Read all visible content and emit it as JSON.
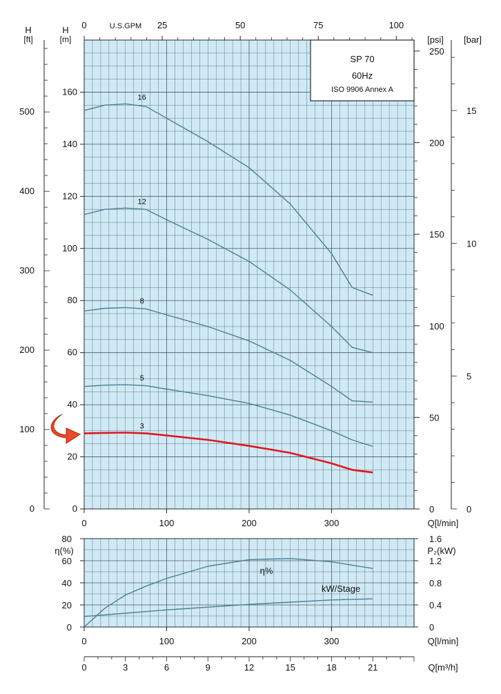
{
  "chart_data": [
    {
      "type": "line",
      "name_box": {
        "title": "SP 70",
        "frequency": "60Hz",
        "standard": "ISO 9906 Annex A"
      },
      "x_label": "Q[l/min]",
      "x_ticks": [
        0,
        100,
        200,
        300
      ],
      "xlim": [
        0,
        400
      ],
      "top_axis_label": "U.S.GPM",
      "top_axis_ticks": [
        0,
        25,
        50,
        75,
        100
      ],
      "left_axis_m": {
        "label": "H",
        "unit": "[m]",
        "ticks": [
          0,
          20,
          40,
          60,
          80,
          100,
          120,
          140,
          160
        ],
        "ylim": [
          0,
          180
        ]
      },
      "left_axis_ft": {
        "label": "H",
        "unit": "[ft]",
        "ticks": [
          0,
          100,
          200,
          300,
          400,
          500
        ]
      },
      "right_axis_psi": {
        "unit": "[psi]",
        "ticks": [
          0,
          50,
          100,
          150,
          200,
          250
        ]
      },
      "right_axis_bar": {
        "unit": "[bar]",
        "ticks": [
          0,
          5,
          10,
          15
        ]
      },
      "series": [
        {
          "name": "16",
          "color": "#4a7f96",
          "x": [
            0,
            25,
            50,
            75,
            100,
            150,
            200,
            250,
            300,
            325,
            350
          ],
          "y": [
            153,
            155,
            155.5,
            154.5,
            150,
            141,
            131,
            117,
            98,
            85,
            82
          ]
        },
        {
          "name": "12",
          "color": "#4a7f96",
          "x": [
            0,
            25,
            50,
            75,
            100,
            150,
            200,
            250,
            300,
            325,
            350
          ],
          "y": [
            113,
            115,
            115.5,
            115,
            111,
            103.5,
            95,
            84,
            70,
            62,
            60
          ]
        },
        {
          "name": "8",
          "color": "#4a7f96",
          "x": [
            0,
            25,
            50,
            75,
            100,
            150,
            200,
            250,
            300,
            325,
            350
          ],
          "y": [
            76,
            77,
            77.3,
            76.8,
            74.5,
            70,
            64.5,
            57,
            47,
            41.5,
            41
          ]
        },
        {
          "name": "5",
          "color": "#4a7f96",
          "x": [
            0,
            25,
            50,
            75,
            100,
            150,
            200,
            250,
            300,
            325,
            350
          ],
          "y": [
            47,
            47.5,
            47.7,
            47.3,
            46,
            43.5,
            40.5,
            36,
            30,
            26.5,
            24
          ]
        },
        {
          "name": "3",
          "color": "#e0161c",
          "highlight": true,
          "x": [
            0,
            25,
            50,
            75,
            100,
            150,
            200,
            250,
            300,
            325,
            350
          ],
          "y": [
            29,
            29.2,
            29.3,
            29,
            28.2,
            26.5,
            24.2,
            21.5,
            17.5,
            15,
            14
          ]
        }
      ]
    },
    {
      "type": "line",
      "x_label": "Q[l/min]",
      "x_ticks": [
        0,
        100,
        200,
        300
      ],
      "xlim": [
        0,
        400
      ],
      "left_axis": {
        "label": "η(%)",
        "ticks": [
          0,
          20,
          40,
          60,
          80
        ],
        "ylim": [
          0,
          80
        ]
      },
      "right_axis": {
        "label": "P₂(kW)",
        "ticks": [
          0,
          0.4,
          0.8,
          1.2,
          1.6
        ],
        "ylim": [
          0,
          1.6
        ]
      },
      "series": [
        {
          "name": "η%",
          "axis": "left",
          "color": "#4a7f96",
          "x": [
            0,
            25,
            50,
            75,
            100,
            150,
            200,
            250,
            300,
            325,
            350
          ],
          "y": [
            0,
            17,
            29,
            37,
            44,
            55,
            61,
            62,
            59,
            56,
            53
          ]
        },
        {
          "name": "kW/Stage",
          "axis": "right",
          "color": "#4a7f96",
          "x": [
            0,
            50,
            100,
            150,
            200,
            250,
            300,
            350
          ],
          "y": [
            0.19,
            0.25,
            0.31,
            0.36,
            0.41,
            0.45,
            0.49,
            0.51
          ]
        }
      ],
      "bottom_axis_m3h": {
        "label": "Q[m³/h]",
        "ticks": [
          0,
          3,
          6,
          9,
          12,
          15,
          18,
          21
        ]
      }
    }
  ]
}
